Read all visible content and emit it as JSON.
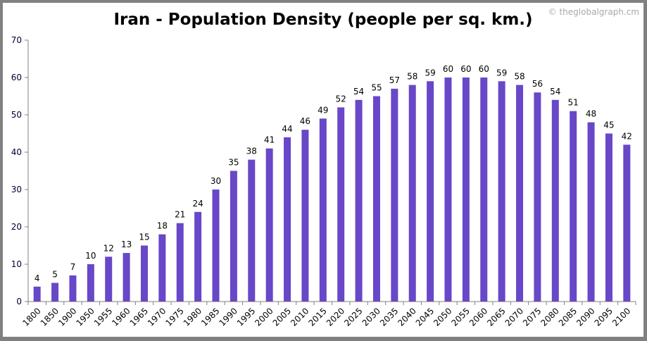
{
  "chart_data": {
    "type": "bar",
    "title": "Iran - Population Density (people per sq. km.)",
    "watermark": "© theglobalgraph.cm",
    "categories": [
      "1800",
      "1850",
      "1900",
      "1950",
      "1955",
      "1960",
      "1965",
      "1970",
      "1975",
      "1980",
      "1985",
      "1990",
      "1995",
      "2000",
      "2005",
      "2010",
      "2015",
      "2020",
      "2025",
      "2030",
      "2035",
      "2040",
      "2045",
      "2050",
      "2055",
      "2060",
      "2065",
      "2070",
      "2075",
      "2080",
      "2085",
      "2090",
      "2095",
      "2100"
    ],
    "values": [
      4,
      5,
      7,
      10,
      12,
      13,
      15,
      18,
      21,
      24,
      30,
      35,
      38,
      41,
      44,
      46,
      49,
      52,
      54,
      55,
      57,
      58,
      59,
      60,
      60,
      60,
      59,
      58,
      56,
      54,
      51,
      48,
      45,
      42
    ],
    "ylim": [
      0,
      70
    ],
    "yticks": [
      0,
      10,
      20,
      30,
      40,
      50,
      60,
      70
    ],
    "xlabel": "",
    "ylabel": "",
    "grid": false,
    "legend": "none",
    "bar_color": "#6847c8"
  }
}
